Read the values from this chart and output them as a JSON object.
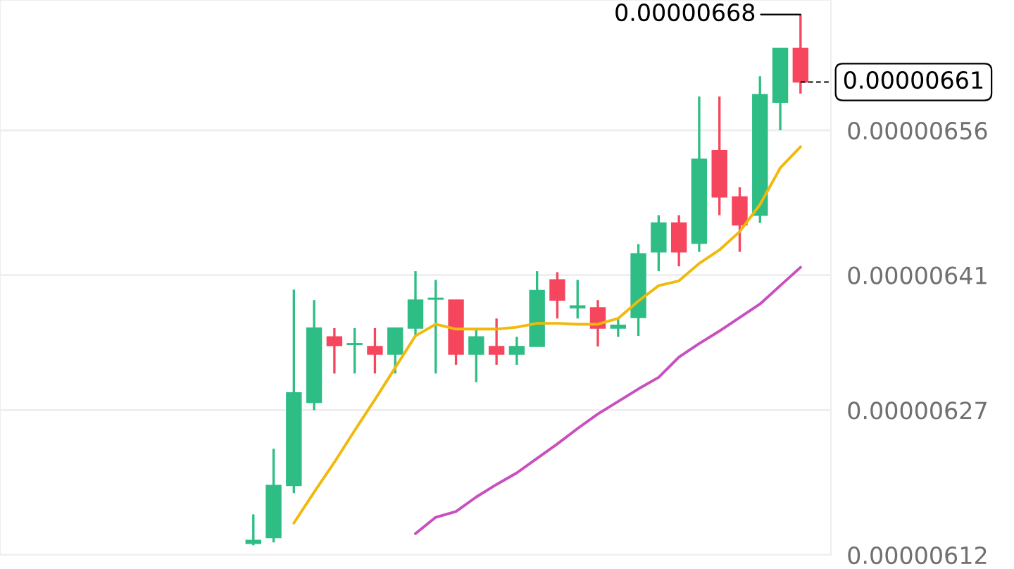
{
  "chart_data": {
    "type": "candlestick",
    "categories": [
      null,
      null,
      null,
      null,
      null,
      null,
      null,
      null,
      null,
      null,
      null,
      null,
      null,
      null,
      null,
      null,
      null,
      null,
      null,
      null,
      null,
      null,
      null,
      null,
      null,
      null,
      null,
      null
    ],
    "ohlc": [
      [
        6.132e-06,
        6.162e-06,
        6.13e-06,
        6.135e-06
      ],
      [
        6.138e-06,
        6.23e-06,
        6.133e-06,
        6.192e-06
      ],
      [
        6.192e-06,
        6.395e-06,
        6.184e-06,
        6.288e-06
      ],
      [
        6.278e-06,
        6.384e-06,
        6.27e-06,
        6.355e-06
      ],
      [
        6.346e-06,
        6.355e-06,
        6.308e-06,
        6.337e-06
      ],
      [
        6.338e-06,
        6.355e-06,
        6.308e-06,
        6.339e-06
      ],
      [
        6.336e-06,
        6.355e-06,
        6.308e-06,
        6.328e-06
      ],
      [
        6.328e-06,
        6.355e-06,
        6.308e-06,
        6.355e-06
      ],
      [
        6.355e-06,
        6.414e-06,
        6.346e-06,
        6.384e-06
      ],
      [
        6.385e-06,
        6.405e-06,
        6.308e-06,
        6.386e-06
      ],
      [
        6.384e-06,
        6.384e-06,
        6.317e-06,
        6.328e-06
      ],
      [
        6.328e-06,
        6.355e-06,
        6.299e-06,
        6.346e-06
      ],
      [
        6.336e-06,
        6.365e-06,
        6.317e-06,
        6.328e-06
      ],
      [
        6.328e-06,
        6.346e-06,
        6.317e-06,
        6.336e-06
      ],
      [
        6.336e-06,
        6.414e-06,
        6.336e-06,
        6.394e-06
      ],
      [
        6.405e-06,
        6.413e-06,
        6.365e-06,
        6.384e-06
      ],
      [
        6.376e-06,
        6.405e-06,
        6.365e-06,
        6.378e-06
      ],
      [
        6.376e-06,
        6.384e-06,
        6.336e-06,
        6.355e-06
      ],
      [
        6.355e-06,
        6.365e-06,
        6.346e-06,
        6.358e-06
      ],
      [
        6.366e-06,
        6.442e-06,
        6.347e-06,
        6.432e-06
      ],
      [
        6.434e-06,
        6.472e-06,
        6.414e-06,
        6.464e-06
      ],
      [
        6.464e-06,
        6.472e-06,
        6.419e-06,
        6.434e-06
      ],
      [
        6.443e-06,
        6.595e-06,
        6.434e-06,
        6.53e-06
      ],
      [
        6.539e-06,
        6.595e-06,
        6.472e-06,
        6.491e-06
      ],
      [
        6.491e-06,
        6.501e-06,
        6.434e-06,
        6.462e-06
      ],
      [
        6.472e-06,
        6.616e-06,
        6.464e-06,
        6.597e-06
      ],
      [
        6.589e-06,
        6.645e-06,
        6.56e-06,
        6.645e-06
      ],
      [
        6.645e-06,
        6.68e-06,
        6.598e-06,
        6.61e-06
      ]
    ],
    "colors": [
      "#2ebd85",
      "#2ebd85",
      "#2ebd85",
      "#2ebd85",
      "#f6465d",
      "#2ebd85",
      "#f6465d",
      "#2ebd85",
      "#2ebd85",
      "#2ebd85",
      "#f6465d",
      "#2ebd85",
      "#f6465d",
      "#2ebd85",
      "#2ebd85",
      "#f6465d",
      "#2ebd85",
      "#f6465d",
      "#2ebd85",
      "#2ebd85",
      "#2ebd85",
      "#f6465d",
      "#2ebd85",
      "#f6465d",
      "#f6465d",
      "#2ebd85",
      "#2ebd85",
      "#f6465d"
    ],
    "series": [
      {
        "type": "line",
        "color": "#f0b90b",
        "values": [
          null,
          null,
          6.153e-06,
          6.185e-06,
          6.216e-06,
          6.249e-06,
          6.281e-06,
          6.314e-06,
          6.347e-06,
          6.359e-06,
          6.354e-06,
          6.354e-06,
          6.354e-06,
          6.356e-06,
          6.36e-06,
          6.36e-06,
          6.359e-06,
          6.359e-06,
          6.365e-06,
          6.383e-06,
          6.399e-06,
          6.404e-06,
          6.422e-06,
          6.436e-06,
          6.455e-06,
          6.483e-06,
          6.521e-06,
          6.543e-06
        ]
      },
      {
        "type": "line",
        "color": "#c94fc0",
        "values": [
          null,
          null,
          null,
          null,
          null,
          null,
          null,
          null,
          6.142e-06,
          6.159e-06,
          6.165e-06,
          6.18e-06,
          6.193e-06,
          6.205e-06,
          6.22e-06,
          6.235e-06,
          6.251e-06,
          6.266e-06,
          6.279e-06,
          6.292e-06,
          6.304e-06,
          6.325e-06,
          6.339e-06,
          6.352e-06,
          6.366e-06,
          6.38e-06,
          6.399e-06,
          6.418e-06
        ]
      }
    ],
    "ylim": [
      6.12e-06,
      6.695e-06
    ],
    "yticks": [
      {
        "value": 6.12e-06,
        "label": "0.00000612"
      },
      {
        "value": 6.27e-06,
        "label": "0.00000627"
      },
      {
        "value": 6.41e-06,
        "label": "0.00000641"
      },
      {
        "value": 6.56e-06,
        "label": "0.00000656"
      }
    ],
    "ref_lines": [
      {
        "axis": "y",
        "value": 6.61e-06,
        "label": "0.00000661",
        "line_style": "dashed",
        "color": "#000000"
      }
    ],
    "annotations": [
      "0.00000668"
    ],
    "grid": "y",
    "tick_labels": "y"
  }
}
